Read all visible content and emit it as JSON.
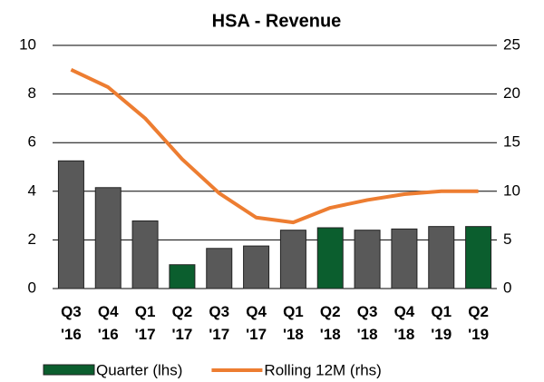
{
  "chart_data": {
    "type": "bar",
    "title": "HSA - Revenue",
    "categories": [
      "Q3 '16",
      "Q4 '16",
      "Q1 '17",
      "Q2 '17",
      "Q3 '17",
      "Q4 '17",
      "Q1 '18",
      "Q2 '18",
      "Q3 '18",
      "Q4 '18",
      "Q1 '19",
      "Q2 '19"
    ],
    "series": [
      {
        "name": "Quarter (lhs)",
        "type": "bar",
        "color": "#0b5e2e",
        "colors": [
          "#595959",
          "#595959",
          "#595959",
          "#0b5e2e",
          "#595959",
          "#595959",
          "#595959",
          "#0b5e2e",
          "#595959",
          "#595959",
          "#595959",
          "#0b5e2e"
        ],
        "values": [
          5.25,
          4.15,
          2.78,
          0.98,
          1.65,
          1.75,
          2.4,
          2.5,
          2.4,
          2.45,
          2.55,
          2.55
        ]
      },
      {
        "name": "Rolling 12M (rhs)",
        "type": "line",
        "color": "#ed7d31",
        "axis": "y2",
        "values": [
          22.5,
          20.7,
          17.5,
          13.3,
          9.8,
          7.3,
          6.8,
          8.3,
          9.1,
          9.7,
          10.0,
          10.0
        ]
      }
    ],
    "ylim": [
      0,
      10
    ],
    "yticks": [
      0,
      2,
      4,
      6,
      8,
      10
    ],
    "y2lim": [
      0,
      25
    ],
    "y2ticks": [
      0,
      5,
      10,
      15,
      20,
      25
    ],
    "grid": true,
    "legend": "bottom"
  }
}
